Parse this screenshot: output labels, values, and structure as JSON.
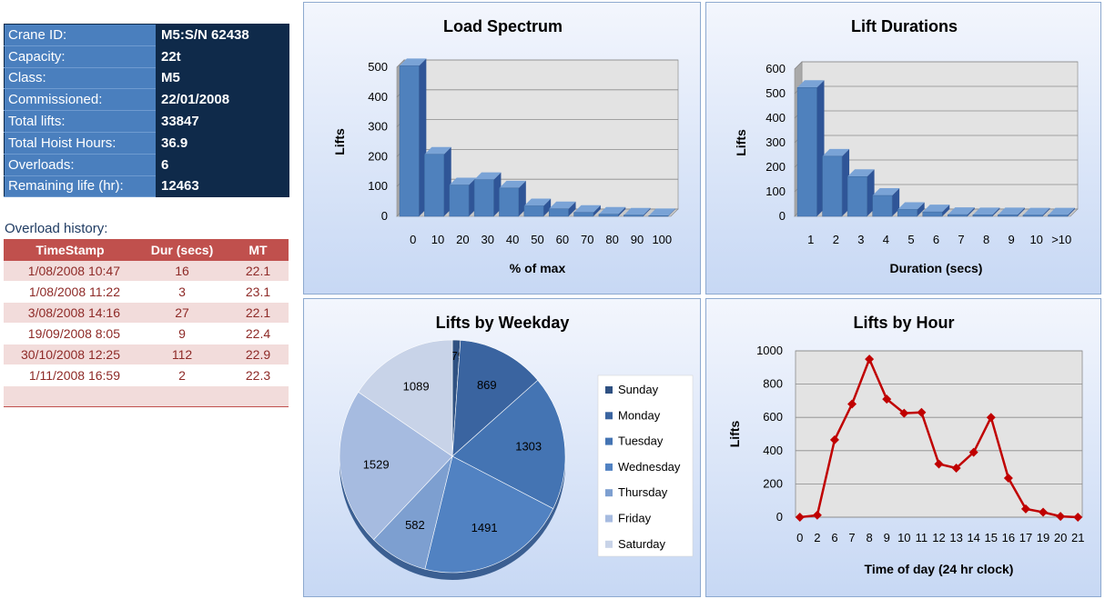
{
  "crane_info": {
    "rows": [
      {
        "label": "Crane ID:",
        "value": "M5:S/N 62438"
      },
      {
        "label": "Capacity:",
        "value": "22t"
      },
      {
        "label": "Class:",
        "value": "M5"
      },
      {
        "label": "Commissioned:",
        "value": "22/01/2008"
      },
      {
        "label": "Total lifts:",
        "value": "33847"
      },
      {
        "label": "Total Hoist Hours:",
        "value": "36.9"
      },
      {
        "label": "Overloads:",
        "value": "6"
      },
      {
        "label": "Remaining life (hr):",
        "value": "12463"
      }
    ]
  },
  "overload_history": {
    "title": "Overload history:",
    "headers": [
      "TimeStamp",
      "Dur  (secs)",
      "MT"
    ],
    "rows": [
      [
        "1/08/2008 10:47",
        "16",
        "22.1"
      ],
      [
        "1/08/2008 11:22",
        "3",
        "23.1"
      ],
      [
        "3/08/2008 14:16",
        "27",
        "22.1"
      ],
      [
        "19/09/2008 8:05",
        "9",
        "22.4"
      ],
      [
        "30/10/2008 12:25",
        "112",
        "22.9"
      ],
      [
        "1/11/2008 16:59",
        "2",
        "22.3"
      ]
    ]
  },
  "colors": {
    "bar": "#4f81bd",
    "bar_dark": "#2f5597",
    "line": "#c00000",
    "pie": [
      "#2f5182",
      "#3a64a0",
      "#4474b3",
      "#5182c2",
      "#7d9fd0",
      "#a6bbe0",
      "#c8d3e8"
    ]
  },
  "chart_data": [
    {
      "type": "bar",
      "title": "Load Spectrum",
      "xlabel": "% of max",
      "ylabel": "Lifts",
      "categories": [
        "0",
        "10",
        "20",
        "30",
        "40",
        "50",
        "60",
        "70",
        "80",
        "90",
        "100"
      ],
      "values": [
        505,
        208,
        105,
        123,
        95,
        35,
        25,
        13,
        7,
        4,
        2
      ],
      "ylim": [
        0,
        500
      ],
      "yticks": [
        0,
        100,
        200,
        300,
        400,
        500
      ],
      "grid": true
    },
    {
      "type": "bar",
      "title": "Lift Durations",
      "xlabel": "Duration (secs)",
      "ylabel": "Lifts",
      "categories": [
        "1",
        "2",
        "3",
        "4",
        "5",
        "6",
        "7",
        "8",
        "9",
        "10",
        ">10"
      ],
      "values": [
        525,
        245,
        162,
        85,
        28,
        18,
        7,
        6,
        6,
        5,
        5
      ],
      "ylim": [
        0,
        600
      ],
      "yticks": [
        0,
        100,
        200,
        300,
        400,
        500,
        600
      ],
      "grid": true
    },
    {
      "type": "pie",
      "title": "Lifts by Weekday",
      "categories": [
        "Sunday",
        "Monday",
        "Tuesday",
        "Wednesday",
        "Thursday",
        "Friday",
        "Saturday"
      ],
      "values": [
        79,
        869,
        1303,
        1491,
        582,
        1529,
        1089
      ],
      "legend_placement": "right"
    },
    {
      "type": "line",
      "title": "Lifts by Hour",
      "xlabel": "Time of day (24 hr clock)",
      "ylabel": "Lifts",
      "categories": [
        "0",
        "2",
        "6",
        "7",
        "8",
        "9",
        "10",
        "11",
        "12",
        "13",
        "14",
        "15",
        "16",
        "17",
        "19",
        "20",
        "21"
      ],
      "values": [
        0,
        12,
        465,
        680,
        950,
        710,
        625,
        630,
        320,
        295,
        390,
        600,
        235,
        50,
        30,
        5,
        0
      ],
      "ylim": [
        0,
        1000
      ],
      "yticks": [
        0,
        200,
        400,
        600,
        800,
        1000
      ],
      "grid": true
    }
  ]
}
